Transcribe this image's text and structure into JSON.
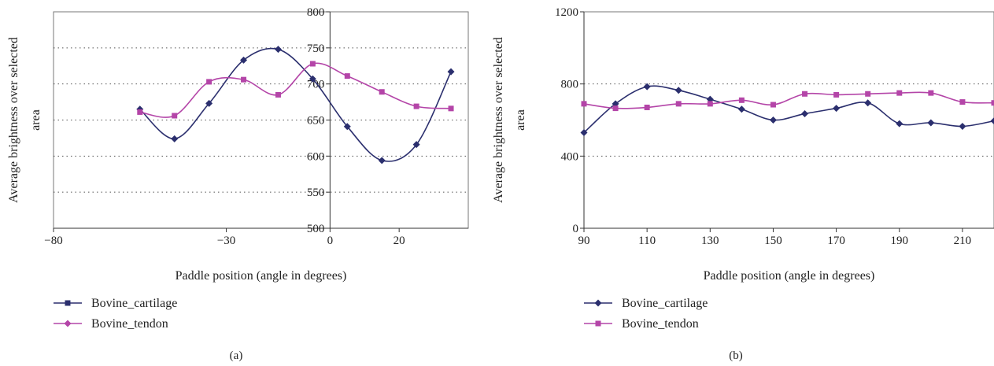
{
  "chart_data": [
    {
      "type": "line",
      "panel_label": "(a)",
      "xlabel": "Paddle position (angle in degrees)",
      "ylabel_lines": [
        "Average brightness over selected",
        "area"
      ],
      "xlim": [
        -80,
        40
      ],
      "ylim": [
        500,
        800
      ],
      "xticks": [
        "−80",
        "−30",
        "0",
        "20"
      ],
      "xtick_values": [
        -80,
        -30,
        0,
        20
      ],
      "yticks": [
        "500",
        "550",
        "600",
        "650",
        "700",
        "750",
        "800"
      ],
      "ytick_values": [
        500,
        550,
        600,
        650,
        700,
        750,
        800
      ],
      "grid": "horizontal dotted",
      "legend_position": "bottom-left",
      "series": [
        {
          "name": "Bovine_cartilage",
          "color": "#2b2f6e",
          "legend_marker": "square",
          "marker": "diamond",
          "x": [
            -55,
            -45,
            -35,
            -25,
            -15,
            -5,
            5,
            15,
            25,
            35
          ],
          "y": [
            665,
            624,
            673,
            733,
            748,
            707,
            641,
            594,
            616,
            717
          ]
        },
        {
          "name": "Bovine_tendon",
          "color": "#b445a8",
          "legend_marker": "diamond",
          "marker": "square",
          "x": [
            -55,
            -45,
            -35,
            -25,
            -15,
            -5,
            5,
            15,
            25,
            35
          ],
          "y": [
            661,
            656,
            703,
            706,
            685,
            728,
            711,
            689,
            669,
            666
          ]
        }
      ]
    },
    {
      "type": "line",
      "panel_label": "(b)",
      "xlabel": "Paddle position (angle in degrees)",
      "ylabel_lines": [
        "Average brightness over selected",
        "area"
      ],
      "xlim": [
        90,
        220
      ],
      "ylim": [
        0,
        1200
      ],
      "xticks": [
        "90",
        "110",
        "130",
        "150",
        "170",
        "190",
        "210"
      ],
      "xtick_values": [
        90,
        110,
        130,
        150,
        170,
        190,
        210
      ],
      "yticks": [
        "0",
        "400",
        "800",
        "1200"
      ],
      "ytick_values": [
        0,
        400,
        800,
        1200
      ],
      "grid": "horizontal dotted",
      "legend_position": "bottom-left",
      "series": [
        {
          "name": "Bovine_cartilage",
          "color": "#2b2f6e",
          "legend_marker": "diamond",
          "marker": "diamond",
          "x": [
            90,
            100,
            110,
            120,
            130,
            140,
            150,
            160,
            170,
            180,
            190,
            200,
            210,
            220
          ],
          "y": [
            530,
            690,
            785,
            765,
            715,
            660,
            600,
            635,
            665,
            695,
            580,
            585,
            565,
            595
          ]
        },
        {
          "name": "Bovine_tendon",
          "color": "#b445a8",
          "legend_marker": "square",
          "marker": "square",
          "x": [
            90,
            100,
            110,
            120,
            130,
            140,
            150,
            160,
            170,
            180,
            190,
            200,
            210,
            220
          ],
          "y": [
            690,
            665,
            670,
            690,
            690,
            710,
            685,
            745,
            740,
            745,
            750,
            750,
            700,
            695
          ]
        }
      ]
    }
  ]
}
